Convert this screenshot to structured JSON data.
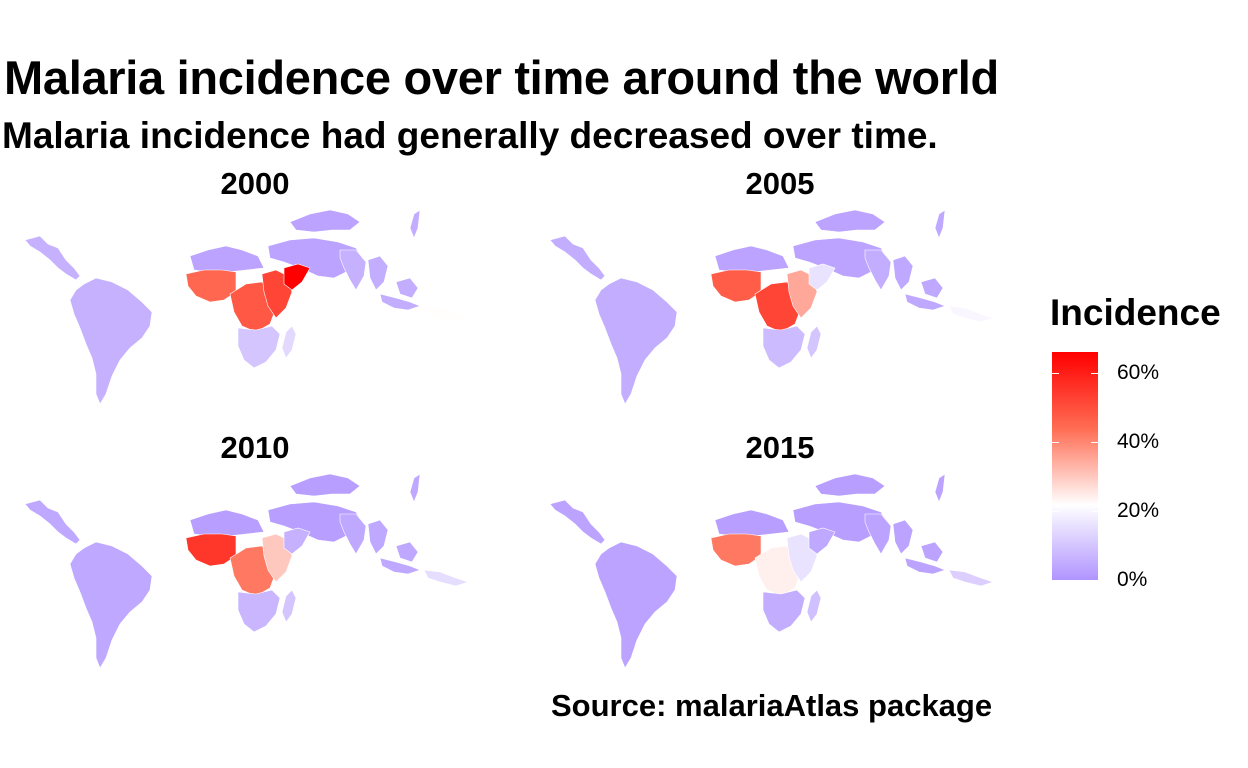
{
  "title": "Malaria incidence over time around the world",
  "subtitle": "Malaria incidence had generally decreased over time.",
  "caption": "Source: malariaAtlas package",
  "legend": {
    "title": "Incidence",
    "ticks": [
      {
        "label": "60%",
        "value": 60
      },
      {
        "label": "40%",
        "value": 40
      },
      {
        "label": "20%",
        "value": 20
      },
      {
        "label": "0%",
        "value": 0
      }
    ],
    "range": [
      0,
      66
    ],
    "colors": {
      "low": "#B094FF",
      "mid": "#FFFFFF",
      "high": "#FF0000"
    }
  },
  "panels": [
    {
      "year": "2000",
      "regions": {
        "americas": 6,
        "north_africa_mideast": 3,
        "west_africa": 45,
        "central_africa": 48,
        "east_africa": 52,
        "horn_of_africa": 66,
        "southern_africa": 10,
        "madagascar": 14,
        "south_asia": 6,
        "southeast_asia": 5,
        "pacific_islands": 22
      }
    },
    {
      "year": "2005",
      "regions": {
        "americas": 5,
        "north_africa_mideast": 3,
        "west_africa": 47,
        "central_africa": 52,
        "east_africa": 35,
        "horn_of_africa": 16,
        "southern_africa": 8,
        "madagascar": 10,
        "south_asia": 5,
        "southeast_asia": 4,
        "pacific_islands": 20
      }
    },
    {
      "year": "2010",
      "regions": {
        "americas": 4,
        "north_africa_mideast": 2,
        "west_africa": 55,
        "central_africa": 42,
        "east_africa": 30,
        "horn_of_africa": 6,
        "southern_africa": 7,
        "madagascar": 10,
        "south_asia": 4,
        "southeast_asia": 4,
        "pacific_islands": 15
      }
    },
    {
      "year": "2015",
      "regions": {
        "americas": 3,
        "north_africa_mideast": 2,
        "west_africa": 42,
        "central_africa": 24,
        "east_africa": 16,
        "horn_of_africa": 4,
        "southern_africa": 5,
        "madagascar": 9,
        "south_asia": 3,
        "southeast_asia": 3,
        "pacific_islands": 12
      }
    }
  ]
}
